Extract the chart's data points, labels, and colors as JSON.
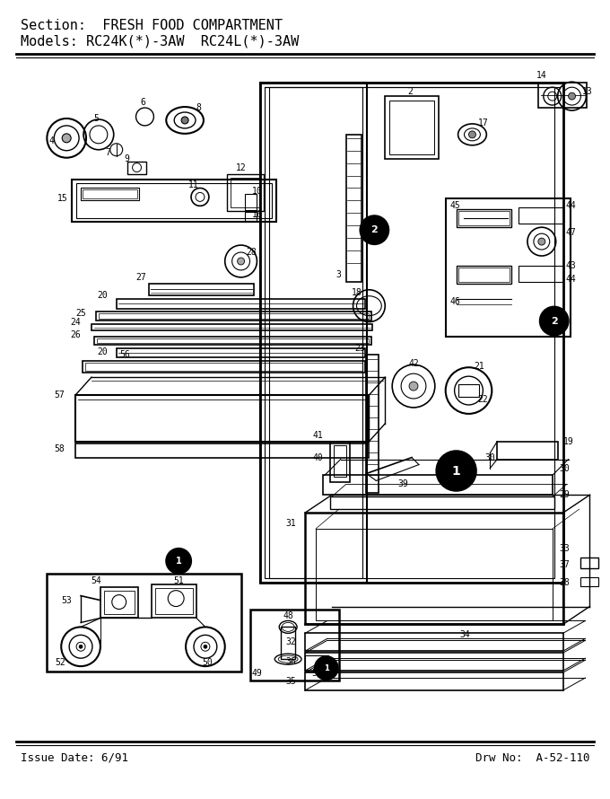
{
  "title_line1": "Section:  FRESH FOOD COMPARTMENT",
  "title_line2": "Models: RC24K(*)-3AW  RC24L(*)-3AW",
  "footer_left": "Issue Date: 6/91",
  "footer_right": "Drw No:  A-52-110",
  "bg_color": "#ffffff",
  "text_color": "#000000",
  "title_fontsize": 11,
  "footer_fontsize": 9,
  "fig_width": 6.8,
  "fig_height": 8.9,
  "dpi": 100
}
